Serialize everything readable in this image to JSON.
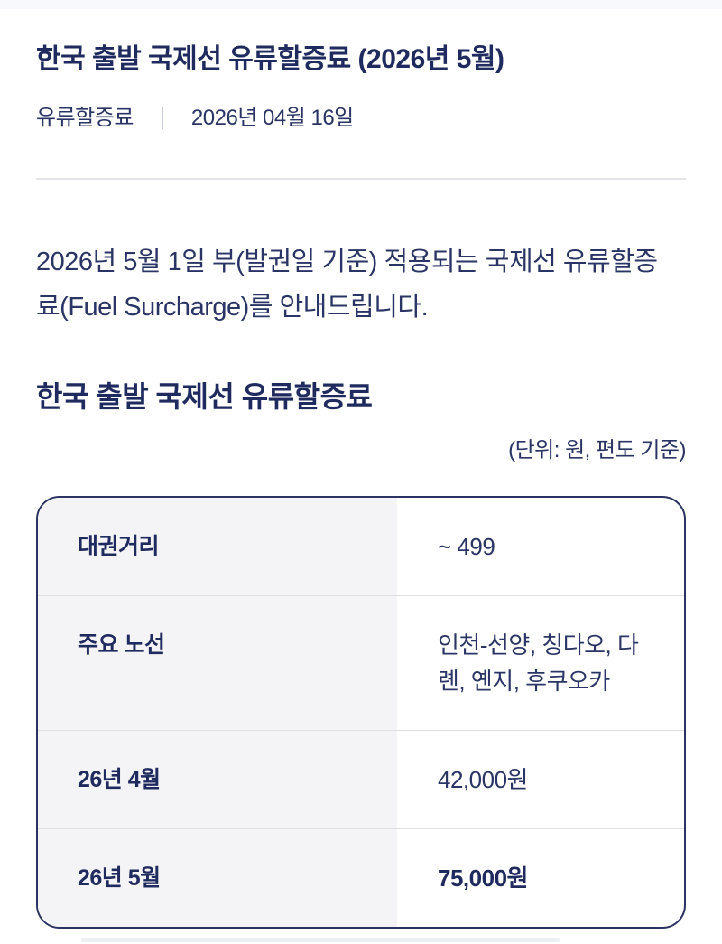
{
  "header": {
    "title": "한국 출발 국제선 유류할증료 (2026년 5월)",
    "category": "유류할증료",
    "date": "2026년 04월 16일"
  },
  "intro": {
    "text": "2026년 5월 1일 부(발권일 기준) 적용되는 국제선 유류할증료(Fuel Surcharge)를 안내드립니다."
  },
  "section": {
    "heading": "한국 출발 국제선 유류할증료",
    "unit_note": "(단위: 원, 편도 기준)"
  },
  "table": {
    "rows": [
      {
        "label": "대권거리",
        "value": "~ 499",
        "emphasis": false
      },
      {
        "label": "주요 노선",
        "value": "인천-선양, 칭다오, 다롄, 옌지, 후쿠오카",
        "emphasis": false
      },
      {
        "label": "26년 4월",
        "value": "42,000원",
        "emphasis": false
      },
      {
        "label": "26년 5월",
        "value": "75,000원",
        "emphasis": true
      }
    ]
  },
  "colors": {
    "heading_navy": "#1f2a5e",
    "body_navy": "#2a3565",
    "table_border": "#2a3361",
    "label_cell_bg": "#f4f4f6",
    "row_divider": "#dfe0e4",
    "header_divider": "#e4e5e9",
    "meta_separator": "#c9cdd5",
    "top_strip": "#f7f9fc"
  }
}
